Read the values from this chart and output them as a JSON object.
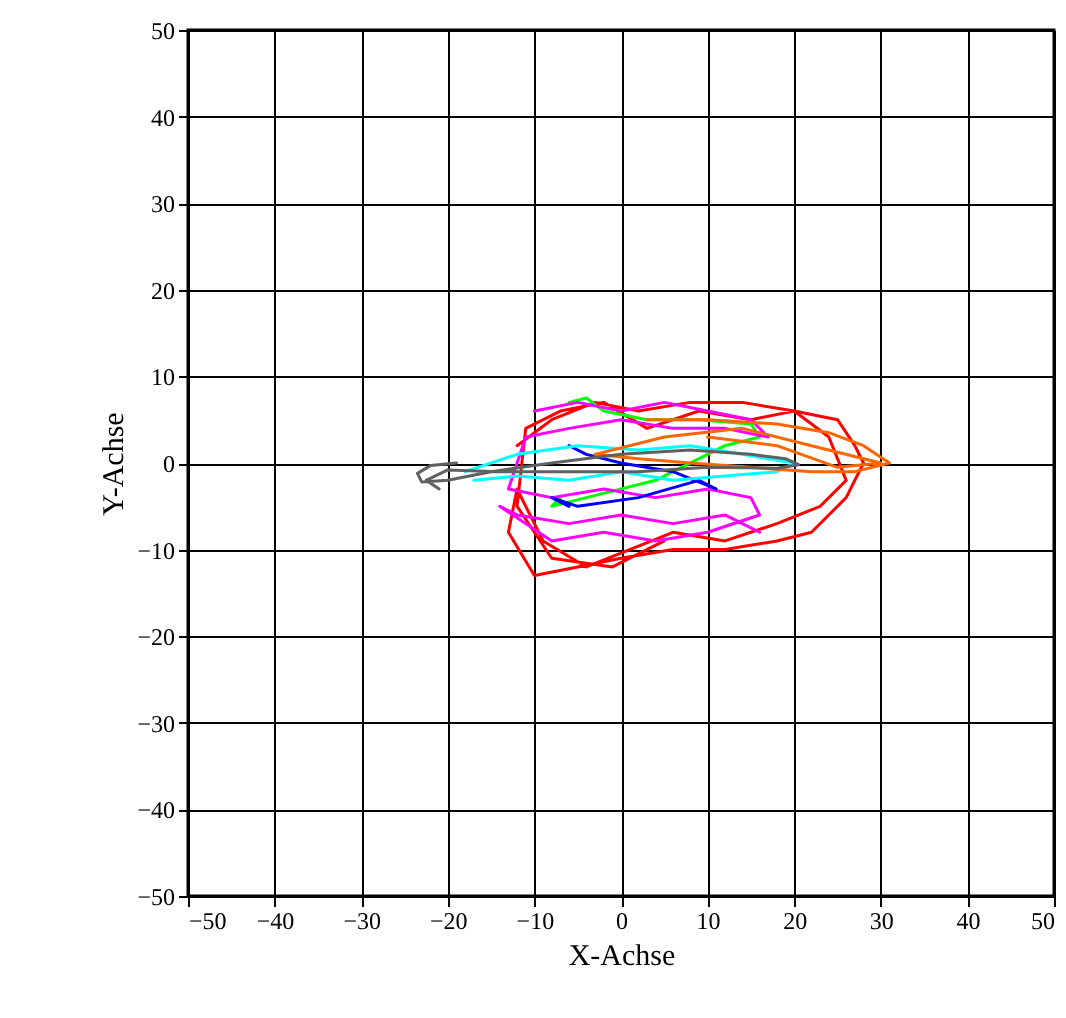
{
  "chart_data": {
    "type": "line",
    "xlabel": "X-Achse",
    "ylabel": "Y-Achse",
    "xlim": [
      -50,
      50
    ],
    "ylim": [
      -50,
      50
    ],
    "xticks": [
      -50,
      -40,
      -30,
      -20,
      -10,
      0,
      10,
      20,
      30,
      40,
      50
    ],
    "yticks": [
      -50,
      -40,
      -30,
      -20,
      -10,
      0,
      10,
      20,
      30,
      40,
      50
    ],
    "grid": true,
    "series": [
      {
        "color": "#ff0000",
        "x": [
          -12,
          -8,
          -3,
          2,
          8,
          14,
          20,
          25,
          27,
          28,
          26,
          22,
          18,
          12,
          6,
          0,
          -5,
          -10,
          -13,
          -12,
          -9,
          -4,
          1,
          6,
          12,
          18,
          23,
          26,
          24,
          20,
          15,
          9,
          3,
          -2,
          -7,
          -11,
          -12,
          -8,
          -1,
          5
        ],
        "values": [
          2,
          5,
          7,
          6,
          7,
          7,
          6,
          5,
          2,
          0,
          -4,
          -8,
          -9,
          -10,
          -10,
          -11,
          -12,
          -13,
          -8,
          -3,
          -9,
          -12,
          -10,
          -8,
          -9,
          -7,
          -5,
          -2,
          3,
          6,
          5,
          6,
          4,
          7,
          6,
          4,
          -5,
          -11,
          -12,
          -9
        ]
      },
      {
        "color": "#00ff00",
        "x": [
          -6,
          -4,
          -2,
          3,
          9,
          15,
          16,
          12,
          4,
          -4,
          -8,
          -7
        ],
        "values": [
          7,
          7.5,
          6,
          5,
          5,
          4.5,
          3,
          2,
          -2,
          -4,
          -5,
          -4
        ]
      },
      {
        "color": "#ff00ff",
        "x": [
          -10,
          -5,
          0,
          5,
          10,
          15,
          17,
          12,
          6,
          0,
          -6,
          -11,
          -13,
          -8,
          -2,
          4,
          10,
          15,
          16,
          10,
          4,
          -2,
          -8,
          -14,
          -12,
          -6,
          0,
          6,
          12,
          16
        ],
        "values": [
          6,
          7,
          6,
          7,
          6,
          5,
          3,
          4,
          4,
          5,
          4,
          3,
          -3,
          -4,
          -3,
          -4,
          -3,
          -4,
          -6,
          -8,
          -9,
          -8,
          -9,
          -5,
          -6,
          -7,
          -6,
          -7,
          -6,
          -8
        ]
      },
      {
        "color": "#0000ff",
        "x": [
          -6,
          -4,
          0,
          6,
          11,
          9,
          2,
          -5,
          -8,
          -6
        ],
        "values": [
          2,
          1,
          0,
          -1,
          -3,
          -2,
          -4,
          -5,
          -4,
          -5
        ]
      },
      {
        "color": "#00ffff",
        "x": [
          -18,
          -12,
          -5,
          2,
          8,
          14,
          20,
          18,
          12,
          6,
          0,
          -6,
          -12,
          -17
        ],
        "values": [
          -1,
          1,
          2,
          1.5,
          2,
          1,
          0,
          -1,
          -1.5,
          -2,
          -1,
          -2,
          -1.5,
          -2
        ]
      },
      {
        "color": "#ff6600",
        "x": [
          3,
          10,
          18,
          24,
          28,
          31,
          27,
          22,
          15,
          8,
          2,
          -3,
          5,
          14,
          22,
          30,
          25,
          18,
          10
        ],
        "values": [
          5,
          5,
          4.5,
          3.5,
          2,
          0,
          -1,
          -1,
          -0.5,
          0,
          0.5,
          1,
          3,
          4,
          2,
          0,
          -0.5,
          2,
          3
        ]
      },
      {
        "color": "#606060",
        "x": [
          -19,
          -22,
          -23.5,
          -23,
          -20,
          -15,
          -8,
          0,
          8,
          15,
          19,
          20.5,
          18,
          10,
          2,
          -6,
          -14,
          -20,
          -22.5,
          -21
        ],
        "values": [
          0,
          -0.3,
          -1.2,
          -2.2,
          -2,
          -1,
          0,
          1,
          1.5,
          1,
          0.5,
          -0.2,
          -0.6,
          -0.5,
          -1,
          -1,
          -1,
          -0.8,
          -2,
          -3
        ]
      }
    ]
  }
}
